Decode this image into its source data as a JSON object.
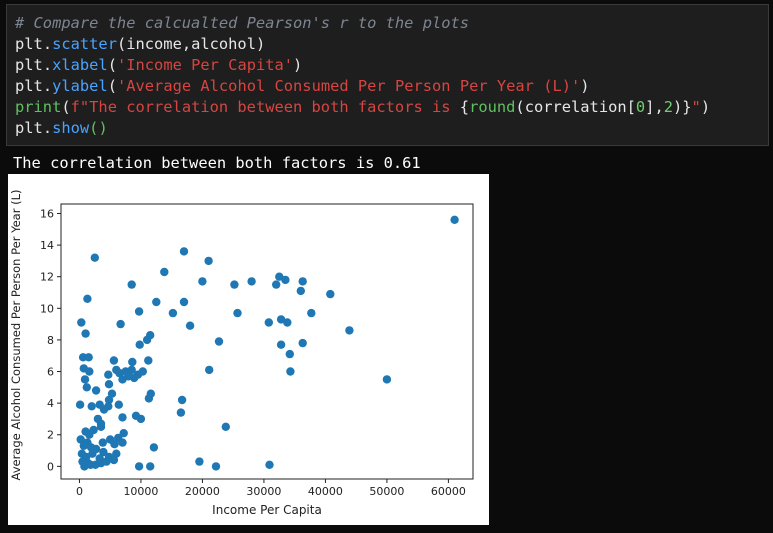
{
  "code": {
    "comment": "# Compare the calcualted Pearson's r to the plots",
    "line2": {
      "obj": "plt",
      "dot": ".",
      "fn": "scatter",
      "args": "(income,alcohol)"
    },
    "line3": {
      "obj": "plt",
      "dot": ".",
      "fn": "xlabel",
      "open": "(",
      "str": "'Income Per Capita'",
      "close": ")"
    },
    "line4": {
      "obj": "plt",
      "dot": ".",
      "fn": "ylabel",
      "open": "(",
      "str": "'Average Alcohol Consumed Per Person Per Year (L)'",
      "close": ")"
    },
    "line5": {
      "fn": "print",
      "open": "(",
      "str1": "f\"The correlation between both factors is ",
      "expr_open": "{",
      "round": "round",
      "p1": "(correlation[",
      "zero": "0",
      "p2": "],",
      "two": "2",
      "p3": ")}",
      "str2": "\"",
      "close": ")"
    },
    "line6": {
      "obj": "plt",
      "dot": ".",
      "fn": "show",
      "parens": "()"
    }
  },
  "output": {
    "text": "The correlation between both factors is 0.61"
  },
  "chart_data": {
    "type": "scatter",
    "title": "",
    "xlabel": "Income Per Capita",
    "ylabel": "Average Alcohol Consumed Per Person Per Year (L)",
    "xlim": [
      -3000,
      64000
    ],
    "ylim": [
      -0.8,
      16.6
    ],
    "xticks": [
      0,
      10000,
      20000,
      30000,
      40000,
      50000,
      60000
    ],
    "xtick_labels": [
      "0",
      "10000",
      "20000",
      "30000",
      "40000",
      "50000",
      "60000"
    ],
    "yticks": [
      0,
      2,
      4,
      6,
      8,
      10,
      12,
      14,
      16
    ],
    "ytick_labels": [
      "0",
      "2",
      "4",
      "6",
      "8",
      "10",
      "12",
      "14",
      "16"
    ],
    "grid": false,
    "marker_color": "#1f77b4",
    "points": [
      [
        61000,
        15.6
      ],
      [
        2500,
        13.2
      ],
      [
        17000,
        13.6
      ],
      [
        21000,
        13.0
      ],
      [
        13800,
        12.3
      ],
      [
        20000,
        11.7
      ],
      [
        8500,
        11.5
      ],
      [
        25200,
        11.5
      ],
      [
        28000,
        11.7
      ],
      [
        32500,
        12.0
      ],
      [
        32000,
        11.5
      ],
      [
        33500,
        11.8
      ],
      [
        36300,
        11.7
      ],
      [
        36000,
        11.1
      ],
      [
        40800,
        10.9
      ],
      [
        1300,
        10.6
      ],
      [
        12500,
        10.4
      ],
      [
        17000,
        10.4
      ],
      [
        15200,
        9.7
      ],
      [
        25700,
        9.7
      ],
      [
        37700,
        9.7
      ],
      [
        9700,
        9.8
      ],
      [
        300,
        9.1
      ],
      [
        6700,
        9.0
      ],
      [
        18000,
        8.9
      ],
      [
        30800,
        9.1
      ],
      [
        32800,
        9.3
      ],
      [
        33800,
        9.1
      ],
      [
        43900,
        8.6
      ],
      [
        1000,
        8.4
      ],
      [
        11500,
        8.3
      ],
      [
        11000,
        8.0
      ],
      [
        22700,
        7.9
      ],
      [
        32800,
        7.7
      ],
      [
        34200,
        7.1
      ],
      [
        36300,
        7.8
      ],
      [
        9800,
        7.7
      ],
      [
        600,
        6.9
      ],
      [
        1500,
        6.9
      ],
      [
        5600,
        6.7
      ],
      [
        8600,
        6.6
      ],
      [
        11200,
        6.7
      ],
      [
        6000,
        6.1
      ],
      [
        6500,
        5.9
      ],
      [
        7500,
        6.0
      ],
      [
        8500,
        6.1
      ],
      [
        9500,
        5.8
      ],
      [
        10300,
        6.0
      ],
      [
        21100,
        6.1
      ],
      [
        34300,
        6.0
      ],
      [
        700,
        6.2
      ],
      [
        1600,
        6.0
      ],
      [
        4700,
        5.8
      ],
      [
        8000,
        5.7
      ],
      [
        8900,
        5.6
      ],
      [
        7000,
        5.5
      ],
      [
        50000,
        5.5
      ],
      [
        900,
        5.5
      ],
      [
        1200,
        5.0
      ],
      [
        2700,
        4.8
      ],
      [
        4800,
        5.2
      ],
      [
        5300,
        4.6
      ],
      [
        11600,
        4.6
      ],
      [
        11300,
        4.3
      ],
      [
        16700,
        4.2
      ],
      [
        4800,
        4.2
      ],
      [
        2000,
        3.8
      ],
      [
        3300,
        3.9
      ],
      [
        4700,
        3.8
      ],
      [
        6400,
        3.9
      ],
      [
        16500,
        3.4
      ],
      [
        7000,
        3.1
      ],
      [
        9200,
        3.2
      ],
      [
        10000,
        3.0
      ],
      [
        100,
        3.9
      ],
      [
        4000,
        3.6
      ],
      [
        23800,
        2.5
      ],
      [
        3000,
        3.0
      ],
      [
        3500,
        2.5
      ],
      [
        1000,
        2.2
      ],
      [
        1600,
        2.0
      ],
      [
        2300,
        2.3
      ],
      [
        3500,
        2.7
      ],
      [
        6300,
        1.8
      ],
      [
        7200,
        2.1
      ],
      [
        1300,
        1.5
      ],
      [
        1900,
        1.2
      ],
      [
        3800,
        1.5
      ],
      [
        5000,
        1.7
      ],
      [
        5700,
        1.4
      ],
      [
        12100,
        1.2
      ],
      [
        400,
        0.8
      ],
      [
        1100,
        0.6
      ],
      [
        2100,
        0.8
      ],
      [
        3300,
        0.5
      ],
      [
        3900,
        0.9
      ],
      [
        4800,
        0.6
      ],
      [
        6000,
        0.8
      ],
      [
        9700,
        0.0
      ],
      [
        11500,
        0.0
      ],
      [
        19500,
        0.3
      ],
      [
        22200,
        0.0
      ],
      [
        30900,
        0.1
      ],
      [
        800,
        0.0
      ],
      [
        1800,
        0.1
      ],
      [
        2600,
        0.1
      ],
      [
        3500,
        0.2
      ],
      [
        4400,
        0.3
      ],
      [
        5600,
        0.4
      ],
      [
        200,
        1.7
      ],
      [
        700,
        1.3
      ],
      [
        2700,
        1.1
      ],
      [
        7000,
        1.5
      ],
      [
        500,
        0.3
      ],
      [
        1400,
        0.2
      ]
    ]
  }
}
